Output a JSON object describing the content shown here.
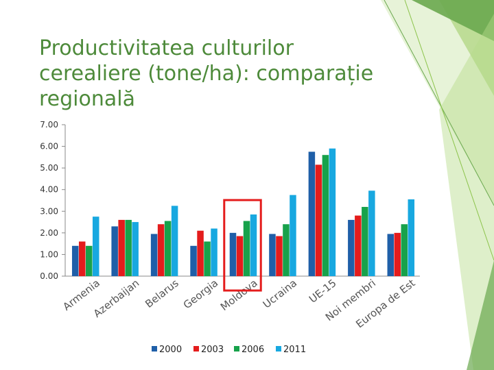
{
  "slide": {
    "title": "Productivitatea culturilor cerealiere (tone/ha): comparație regională"
  },
  "colors": {
    "title": "#4d8a3a",
    "series": [
      "#1f5fa8",
      "#e41c1c",
      "#17a24b",
      "#18a8e0"
    ],
    "highlight_box": "#e41c1c",
    "decor_greens": [
      "#6aa84f",
      "#8bc34a",
      "#b5dc8a",
      "#d4eab8"
    ]
  },
  "chart_data": {
    "type": "bar",
    "categories": [
      "Armenia",
      "Azerbaijan",
      "Belarus",
      "Georgia",
      "Moldova",
      "Ucraina",
      "UE-15",
      "Noi membri",
      "Europa de Est"
    ],
    "series": [
      {
        "name": "2000",
        "values": [
          1.4,
          2.3,
          1.95,
          1.4,
          2.0,
          1.95,
          5.75,
          2.6,
          1.95
        ]
      },
      {
        "name": "2003",
        "values": [
          1.6,
          2.6,
          2.4,
          2.1,
          1.85,
          1.85,
          5.15,
          2.8,
          2.0
        ]
      },
      {
        "name": "2006",
        "values": [
          1.4,
          2.6,
          2.55,
          1.6,
          2.55,
          2.4,
          5.6,
          3.2,
          2.4
        ]
      },
      {
        "name": "2011",
        "values": [
          2.75,
          2.5,
          3.25,
          2.2,
          2.85,
          3.75,
          5.9,
          3.95,
          3.55
        ]
      }
    ],
    "yticks": [
      "0.00",
      "1.00",
      "2.00",
      "3.00",
      "4.00",
      "5.00",
      "6.00",
      "7.00"
    ],
    "ylim": [
      0,
      7
    ],
    "grid": false,
    "legend": "bottom",
    "highlighted_category": "Moldova"
  }
}
